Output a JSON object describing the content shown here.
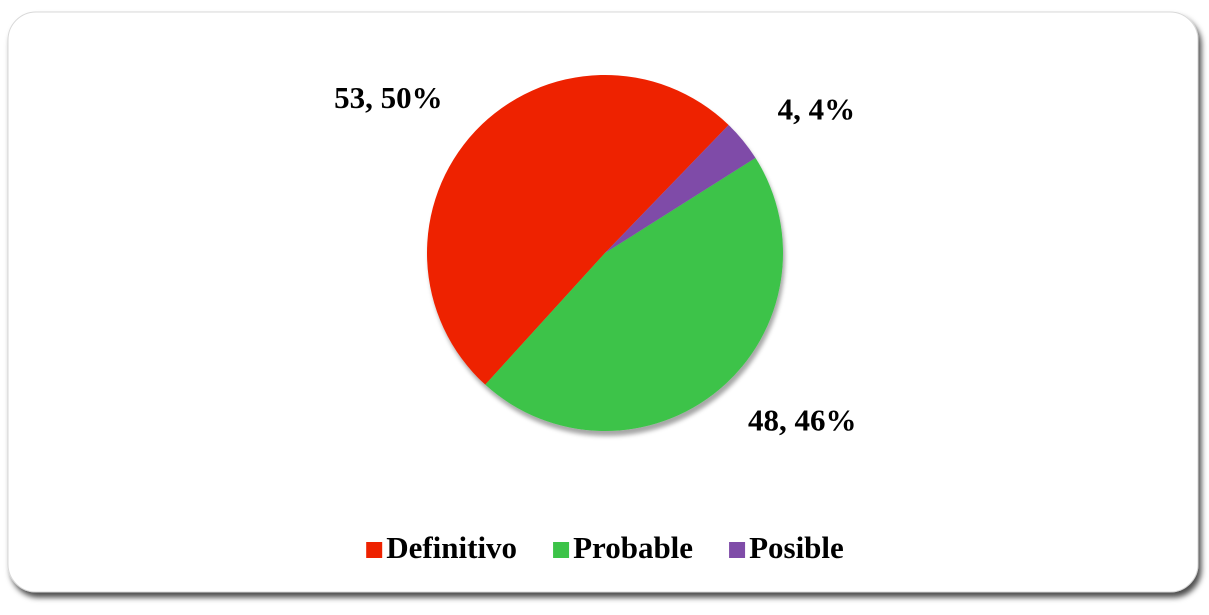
{
  "chart_data": {
    "type": "pie",
    "categories": [
      "Definitivo",
      "Probable",
      "Posible"
    ],
    "values": [
      53,
      48,
      4
    ],
    "value_labels": [
      "53, 50%",
      "48, 46%",
      "4, 4%"
    ],
    "colors": [
      "#ee2200",
      "#3cc348",
      "#7f4ca8"
    ],
    "legend": "bottom"
  }
}
